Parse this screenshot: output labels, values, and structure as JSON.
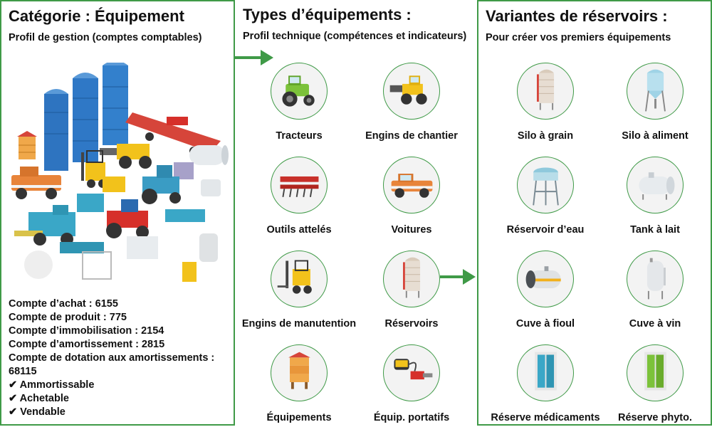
{
  "colors": {
    "accent": "#3f9a47",
    "circle_bg": "#f3f3f3"
  },
  "category": {
    "title": "Catégorie : Équipement",
    "subtitle": "Profil de gestion (comptes comptables)",
    "accounts": [
      "Compte d’achat : 6155",
      "Compte de produit : 775",
      "Compte d’immobilisation : 2154",
      "Compte d’amortissement : 2815",
      "Compte de dotation aux amortissements :",
      "68115",
      "✔ Ammortissable",
      "✔ Achetable",
      "✔ Vendable"
    ]
  },
  "types": {
    "title": "Types d’équipements :",
    "subtitle": "Profil technique (compétences et indicateurs)",
    "items": [
      {
        "label": "Tracteurs",
        "icon": "tractor-icon"
      },
      {
        "label": "Engins de chantier",
        "icon": "construction-loader-icon"
      },
      {
        "label": "Outils attelés",
        "icon": "harrow-icon"
      },
      {
        "label": "Voitures",
        "icon": "pickup-truck-icon"
      },
      {
        "label": "Engins de manutention",
        "icon": "forklift-icon"
      },
      {
        "label": "Réservoirs",
        "icon": "tank-silo-icon"
      },
      {
        "label": "Équipements",
        "icon": "beehive-icon"
      },
      {
        "label": "Équip. portatifs",
        "icon": "portable-tools-icon"
      }
    ]
  },
  "variants": {
    "title": "Variantes de réservoirs :",
    "subtitle": "Pour créer vos premiers équipements",
    "items": [
      {
        "label": "Silo à grain",
        "icon": "grain-silo-icon"
      },
      {
        "label": "Silo à aliment",
        "icon": "feed-silo-icon"
      },
      {
        "label": "Réservoir d’eau",
        "icon": "water-tower-icon"
      },
      {
        "label": "Tank à lait",
        "icon": "milk-tank-icon"
      },
      {
        "label": "Cuve à fioul",
        "icon": "fuel-tank-icon"
      },
      {
        "label": "Cuve à vin",
        "icon": "wine-vat-icon"
      },
      {
        "label": "Réserve médicaments",
        "icon": "medicine-cabinet-icon"
      },
      {
        "label": "Réserve phyto.",
        "icon": "phyto-cabinet-icon"
      }
    ]
  }
}
